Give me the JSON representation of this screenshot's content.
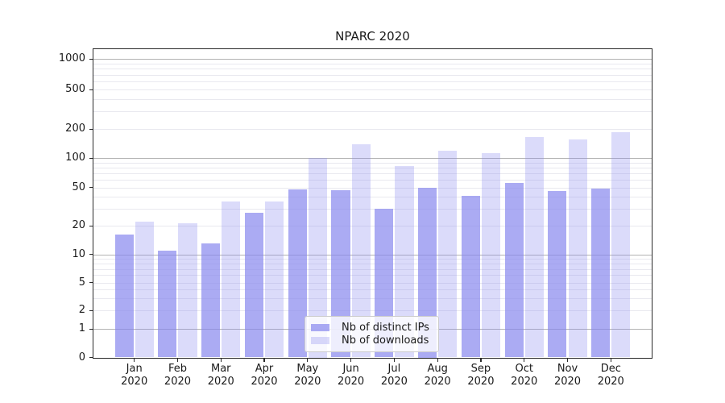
{
  "chart_data": {
    "type": "bar",
    "title": "NPARC 2020",
    "categories": [
      "Jan",
      "Feb",
      "Mar",
      "Apr",
      "May",
      "Jun",
      "Jul",
      "Aug",
      "Sep",
      "Oct",
      "Nov",
      "Dec"
    ],
    "category_year": "2020",
    "series": [
      {
        "name": "Nb of distinct IPs",
        "color": "#8888ee",
        "alpha": 0.7,
        "values": [
          16,
          11,
          13,
          27,
          48,
          47,
          30,
          50,
          41,
          56,
          46,
          49
        ]
      },
      {
        "name": "Nb of downloads",
        "color": "#8888ee",
        "alpha": 0.3,
        "values": [
          22,
          21,
          36,
          36,
          100,
          140,
          82,
          120,
          112,
          165,
          155,
          185
        ]
      }
    ],
    "xlabel": "",
    "ylabel": "",
    "yscale": "symlog",
    "ylim": [
      0,
      1300
    ],
    "yticks": [
      0,
      1,
      2,
      5,
      10,
      20,
      50,
      100,
      200,
      500,
      1000
    ],
    "grid": {
      "major_ticks": [
        1,
        10,
        100,
        1000
      ],
      "minor_ticks": [
        3,
        4,
        6,
        7,
        8,
        9,
        30,
        40,
        60,
        70,
        80,
        90,
        300,
        400,
        600,
        700,
        800,
        900
      ],
      "major_color": "#b3b3b3",
      "minor_color": "#e9e9ef"
    },
    "legend": {
      "position": "lower center"
    },
    "spine_color": "#2a2a2a",
    "text_color": "#1a1a1a"
  }
}
